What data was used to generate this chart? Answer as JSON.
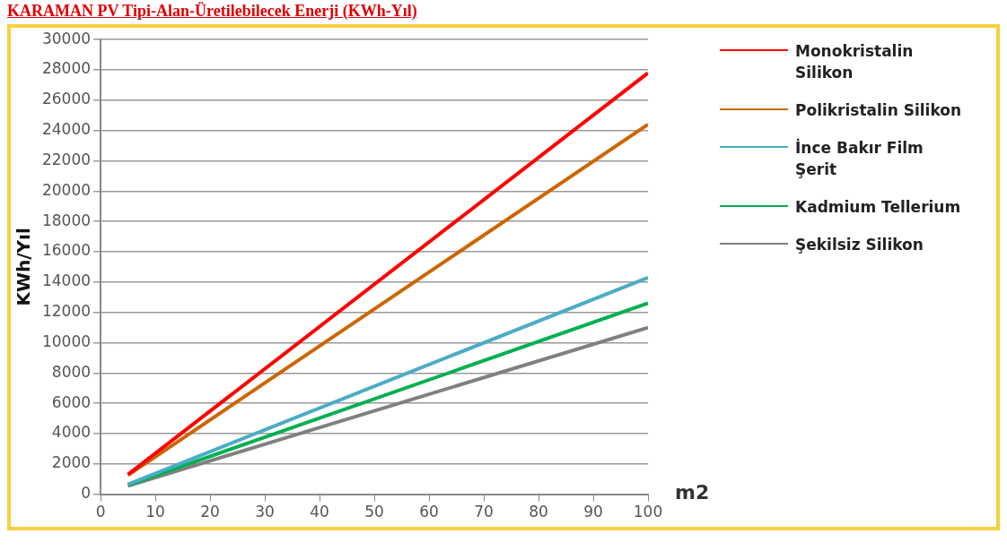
{
  "chart_data": {
    "type": "line",
    "title": "KARAMAN PV Tipi-Alan-Üretilebilecek Enerji (KWh-Yıl)",
    "xlabel": "m2",
    "ylabel": "KWh/Yıl",
    "x": [
      5,
      100
    ],
    "series": [
      {
        "name": "Monokristalin Silikon",
        "color": "#ff0000",
        "values": [
          1300,
          27800
        ]
      },
      {
        "name": "Polikristalin Silikon",
        "color": "#cc6600",
        "values": [
          1250,
          24400
        ]
      },
      {
        "name": "İnce Bakır Film Şerit",
        "color": "#4bacc6",
        "values": [
          650,
          14300
        ]
      },
      {
        "name": "Kadmium Tellerium",
        "color": "#00b050",
        "values": [
          600,
          12600
        ]
      },
      {
        "name": "Şekilsiz Silikon",
        "color": "#808080",
        "values": [
          550,
          11000
        ]
      }
    ],
    "xlim": [
      0,
      100
    ],
    "xticks": [
      0,
      10,
      20,
      30,
      40,
      50,
      60,
      70,
      80,
      90,
      100
    ],
    "ylim": [
      0,
      30000
    ],
    "yticks": [
      0,
      2000,
      4000,
      6000,
      8000,
      10000,
      12000,
      14000,
      16000,
      18000,
      20000,
      22000,
      24000,
      26000,
      28000,
      30000
    ],
    "grid": "y",
    "legend": "right",
    "marker": "none",
    "line_style": "solid"
  }
}
